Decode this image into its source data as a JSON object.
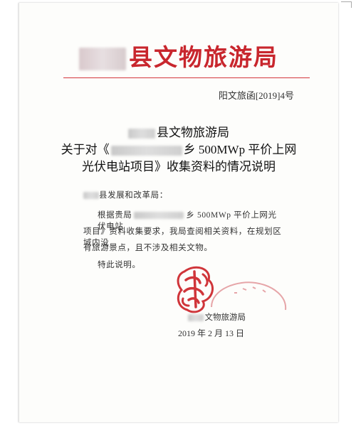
{
  "letterhead": {
    "title": "县文物旅游局"
  },
  "doc_number": "阳文旅函[2019]4号",
  "heading": {
    "line1": "县文物旅游局",
    "line2_prefix": "关于对《",
    "line2_suffix": "乡 500MWp 平价上网",
    "line3": "光伏电站项目》收集资料的情况说明"
  },
  "body": {
    "addressee": "县发展和改革局：",
    "p1_prefix": "根据贵局",
    "p1_suffix": "乡 500MWp 平价上网光伏电站",
    "p1_line2": "项目》资料收集要求，我局查阅相关资料，在规划区域内没",
    "p1_line3": "有旅游景点，且不涉及相关文物。",
    "p2": "特此说明。"
  },
  "signature": {
    "org": "文物旅游局",
    "date": "2019 年 2 月 13 日"
  },
  "colors": {
    "letterhead_red": "#c8262d",
    "seal_red": "#d0353a"
  }
}
